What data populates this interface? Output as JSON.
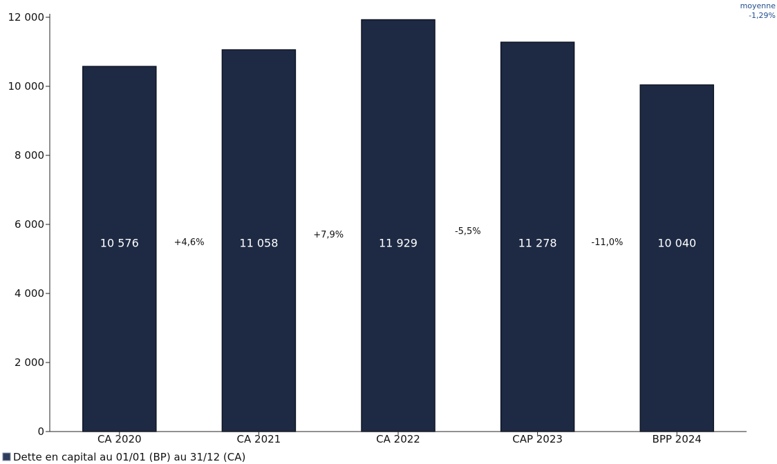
{
  "chart_data": {
    "type": "bar",
    "categories": [
      "CA 2020",
      "CA 2021",
      "CA 2022",
      "CAP 2023",
      "BPP 2024"
    ],
    "series": [
      {
        "name": "Dette en capital au 01/01 (BP) au 31/12 (CA)",
        "values": [
          10576,
          11058,
          11929,
          11278,
          10040
        ],
        "labels": [
          "10 576",
          "11 058",
          "11 929",
          "11 278",
          "10 040"
        ],
        "color": "#1e2a44"
      }
    ],
    "changes": [
      "+4,6%",
      "+7,9%",
      "-5,5%",
      "-11,0%"
    ],
    "average_label": "moyenne",
    "average_value": "-1,29%",
    "ylim": [
      0,
      12000
    ],
    "yticks": [
      0,
      2000,
      4000,
      6000,
      8000,
      10000,
      12000
    ],
    "ytick_labels": [
      "0",
      "2 000",
      "4 000",
      "6 000",
      "8 000",
      "10 000",
      "12 000"
    ],
    "legend": "bottom-left",
    "grid": false
  }
}
